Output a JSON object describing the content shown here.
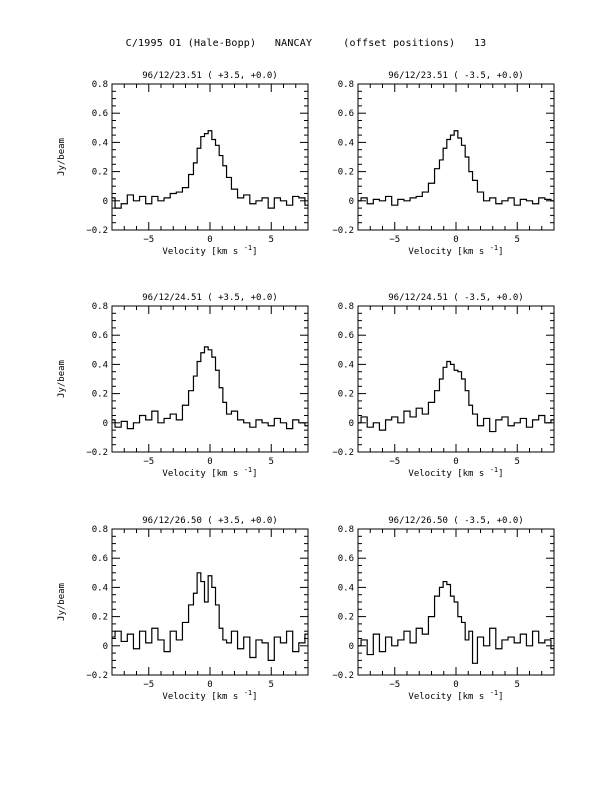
{
  "page_title": "C/1995 O1 (Hale-Bopp)   NANCAY     (offset positions)   13",
  "chart_data": [
    {
      "type": "line",
      "title": "96/12/23.51  ( +3.5, +0.0)",
      "xlabel": "Velocity [km s",
      "xlabel_sup": "-1",
      "xlabel_end": "]",
      "ylabel": "Jy/beam",
      "xlim": [
        -8,
        8
      ],
      "ylim": [
        -0.2,
        0.8
      ],
      "xticks": [
        -5,
        0,
        5
      ],
      "yticks": [
        -0.2,
        0,
        0.2,
        0.4,
        0.6,
        0.8
      ],
      "series": [
        {
          "x": [
            -8.0,
            -7.5,
            -7.0,
            -6.5,
            -6.0,
            -5.5,
            -5.0,
            -4.5,
            -4.0,
            -3.5,
            -3.0,
            -2.5,
            -2.0,
            -1.5,
            -1.2,
            -0.9,
            -0.6,
            -0.3,
            0.0,
            0.3,
            0.6,
            0.9,
            1.2,
            1.5,
            2.0,
            2.5,
            3.0,
            3.5,
            4.0,
            4.5,
            5.0,
            5.5,
            6.0,
            6.5,
            7.0,
            7.5,
            8.0
          ],
          "y": [
            0.02,
            -0.05,
            -0.02,
            0.04,
            0.0,
            0.03,
            -0.02,
            0.03,
            0.0,
            0.02,
            0.05,
            0.06,
            0.09,
            0.18,
            0.26,
            0.36,
            0.44,
            0.46,
            0.48,
            0.42,
            0.38,
            0.31,
            0.24,
            0.16,
            0.08,
            0.02,
            0.04,
            -0.02,
            0.0,
            0.02,
            -0.05,
            0.02,
            0.0,
            -0.03,
            0.03,
            0.02,
            -0.03
          ]
        }
      ]
    },
    {
      "type": "line",
      "title": "96/12/23.51  ( -3.5, +0.0)",
      "xlabel": "Velocity [km s",
      "xlabel_sup": "-1",
      "xlabel_end": "]",
      "ylabel": "",
      "xlim": [
        -8,
        8
      ],
      "ylim": [
        -0.2,
        0.8
      ],
      "xticks": [
        -5,
        0,
        5
      ],
      "yticks": [
        -0.2,
        0,
        0.2,
        0.4,
        0.6,
        0.8
      ],
      "series": [
        {
          "x": [
            -8.0,
            -7.5,
            -7.0,
            -6.5,
            -6.0,
            -5.5,
            -5.0,
            -4.5,
            -4.0,
            -3.5,
            -3.0,
            -2.5,
            -2.0,
            -1.5,
            -1.2,
            -0.9,
            -0.6,
            -0.3,
            0.0,
            0.3,
            0.6,
            0.9,
            1.2,
            1.5,
            2.0,
            2.5,
            3.0,
            3.5,
            4.0,
            4.5,
            5.0,
            5.5,
            6.0,
            6.5,
            7.0,
            7.5,
            8.0
          ],
          "y": [
            0.0,
            0.02,
            -0.02,
            0.01,
            0.0,
            0.03,
            -0.03,
            0.01,
            0.0,
            0.02,
            0.03,
            0.06,
            0.12,
            0.22,
            0.28,
            0.36,
            0.42,
            0.45,
            0.48,
            0.43,
            0.38,
            0.3,
            0.2,
            0.14,
            0.06,
            0.0,
            0.02,
            -0.02,
            0.0,
            0.02,
            -0.03,
            0.01,
            0.0,
            -0.02,
            0.02,
            0.01,
            0.0
          ]
        }
      ]
    },
    {
      "type": "line",
      "title": "96/12/24.51  ( +3.5, +0.0)",
      "xlabel": "Velocity [km s",
      "xlabel_sup": "-1",
      "xlabel_end": "]",
      "ylabel": "Jy/beam",
      "xlim": [
        -8,
        8
      ],
      "ylim": [
        -0.2,
        0.8
      ],
      "xticks": [
        -5,
        0,
        5
      ],
      "yticks": [
        -0.2,
        0,
        0.2,
        0.4,
        0.6,
        0.8
      ],
      "series": [
        {
          "x": [
            -8.0,
            -7.5,
            -7.0,
            -6.5,
            -6.0,
            -5.5,
            -5.0,
            -4.5,
            -4.0,
            -3.5,
            -3.0,
            -2.5,
            -2.0,
            -1.5,
            -1.2,
            -0.9,
            -0.6,
            -0.3,
            0.0,
            0.3,
            0.6,
            0.9,
            1.2,
            1.5,
            2.0,
            2.5,
            3.0,
            3.5,
            4.0,
            4.5,
            5.0,
            5.5,
            6.0,
            6.5,
            7.0,
            7.5,
            8.0
          ],
          "y": [
            0.02,
            -0.03,
            0.01,
            -0.04,
            0.0,
            0.05,
            0.02,
            0.08,
            0.0,
            0.03,
            0.06,
            0.02,
            0.12,
            0.22,
            0.32,
            0.42,
            0.48,
            0.52,
            0.5,
            0.45,
            0.36,
            0.24,
            0.14,
            0.06,
            0.08,
            0.02,
            0.0,
            -0.03,
            0.02,
            0.0,
            -0.02,
            0.03,
            0.0,
            -0.04,
            0.02,
            0.0,
            -0.02
          ]
        }
      ]
    },
    {
      "type": "line",
      "title": "96/12/24.51  ( -3.5, +0.0)",
      "xlabel": "Velocity [km s",
      "xlabel_sup": "-1",
      "xlabel_end": "]",
      "ylabel": "",
      "xlim": [
        -8,
        8
      ],
      "ylim": [
        -0.2,
        0.8
      ],
      "xticks": [
        -5,
        0,
        5
      ],
      "yticks": [
        -0.2,
        0,
        0.2,
        0.4,
        0.6,
        0.8
      ],
      "series": [
        {
          "x": [
            -8.0,
            -7.5,
            -7.0,
            -6.5,
            -6.0,
            -5.5,
            -5.0,
            -4.5,
            -4.0,
            -3.5,
            -3.0,
            -2.5,
            -2.0,
            -1.5,
            -1.2,
            -0.9,
            -0.6,
            -0.3,
            0.0,
            0.3,
            0.6,
            0.9,
            1.2,
            1.5,
            2.0,
            2.5,
            3.0,
            3.5,
            4.0,
            4.5,
            5.0,
            5.5,
            6.0,
            6.5,
            7.0,
            7.5,
            8.0
          ],
          "y": [
            0.0,
            0.04,
            -0.03,
            0.0,
            -0.05,
            0.02,
            0.04,
            0.0,
            0.08,
            0.04,
            0.1,
            0.06,
            0.14,
            0.22,
            0.3,
            0.38,
            0.42,
            0.4,
            0.36,
            0.35,
            0.3,
            0.22,
            0.12,
            0.06,
            -0.02,
            0.03,
            -0.06,
            0.02,
            0.04,
            -0.02,
            0.0,
            0.03,
            -0.03,
            0.02,
            0.05,
            0.0,
            0.02
          ]
        }
      ]
    },
    {
      "type": "line",
      "title": "96/12/26.50  ( +3.5, +0.0)",
      "xlabel": "Velocity [km s",
      "xlabel_sup": "-1",
      "xlabel_end": "]",
      "ylabel": "Jy/beam",
      "xlim": [
        -8,
        8
      ],
      "ylim": [
        -0.2,
        0.8
      ],
      "xticks": [
        -5,
        0,
        5
      ],
      "yticks": [
        -0.2,
        0,
        0.2,
        0.4,
        0.6,
        0.8
      ],
      "series": [
        {
          "x": [
            -8.0,
            -7.5,
            -7.0,
            -6.5,
            -6.0,
            -5.5,
            -5.0,
            -4.5,
            -4.0,
            -3.5,
            -3.0,
            -2.5,
            -2.0,
            -1.5,
            -1.2,
            -0.9,
            -0.6,
            -0.3,
            0.0,
            0.3,
            0.6,
            0.9,
            1.2,
            1.5,
            2.0,
            2.5,
            3.0,
            3.5,
            4.0,
            4.5,
            5.0,
            5.5,
            6.0,
            6.5,
            7.0,
            7.5,
            8.0
          ],
          "y": [
            0.06,
            0.1,
            0.03,
            0.08,
            -0.02,
            0.1,
            0.02,
            0.12,
            0.04,
            -0.04,
            0.1,
            0.04,
            0.16,
            0.28,
            0.36,
            0.5,
            0.44,
            0.3,
            0.48,
            0.4,
            0.28,
            0.12,
            0.04,
            0.02,
            0.1,
            -0.02,
            0.06,
            -0.08,
            0.04,
            0.02,
            -0.1,
            0.06,
            0.02,
            0.1,
            -0.04,
            0.02,
            0.08
          ]
        }
      ]
    },
    {
      "type": "line",
      "title": "96/12/26.50  ( -3.5, +0.0)",
      "xlabel": "Velocity [km s",
      "xlabel_sup": "-1",
      "xlabel_end": "]",
      "ylabel": "",
      "xlim": [
        -8,
        8
      ],
      "ylim": [
        -0.2,
        0.8
      ],
      "xticks": [
        -5,
        0,
        5
      ],
      "yticks": [
        -0.2,
        0,
        0.2,
        0.4,
        0.6,
        0.8
      ],
      "series": [
        {
          "x": [
            -8.0,
            -7.5,
            -7.0,
            -6.5,
            -6.0,
            -5.5,
            -5.0,
            -4.5,
            -4.0,
            -3.5,
            -3.0,
            -2.5,
            -2.0,
            -1.5,
            -1.2,
            -0.9,
            -0.6,
            -0.3,
            0.0,
            0.3,
            0.6,
            0.9,
            1.2,
            1.5,
            2.0,
            2.5,
            3.0,
            3.5,
            4.0,
            4.5,
            5.0,
            5.5,
            6.0,
            6.5,
            7.0,
            7.5,
            8.0
          ],
          "y": [
            0.0,
            0.04,
            -0.06,
            0.08,
            -0.04,
            0.06,
            0.0,
            0.04,
            0.1,
            0.02,
            0.12,
            0.08,
            0.2,
            0.34,
            0.4,
            0.44,
            0.42,
            0.34,
            0.3,
            0.2,
            0.16,
            0.04,
            0.1,
            -0.12,
            0.06,
            0.0,
            0.12,
            -0.02,
            0.04,
            0.06,
            0.02,
            0.08,
            0.0,
            0.1,
            0.02,
            0.04,
            -0.02
          ]
        }
      ]
    }
  ]
}
